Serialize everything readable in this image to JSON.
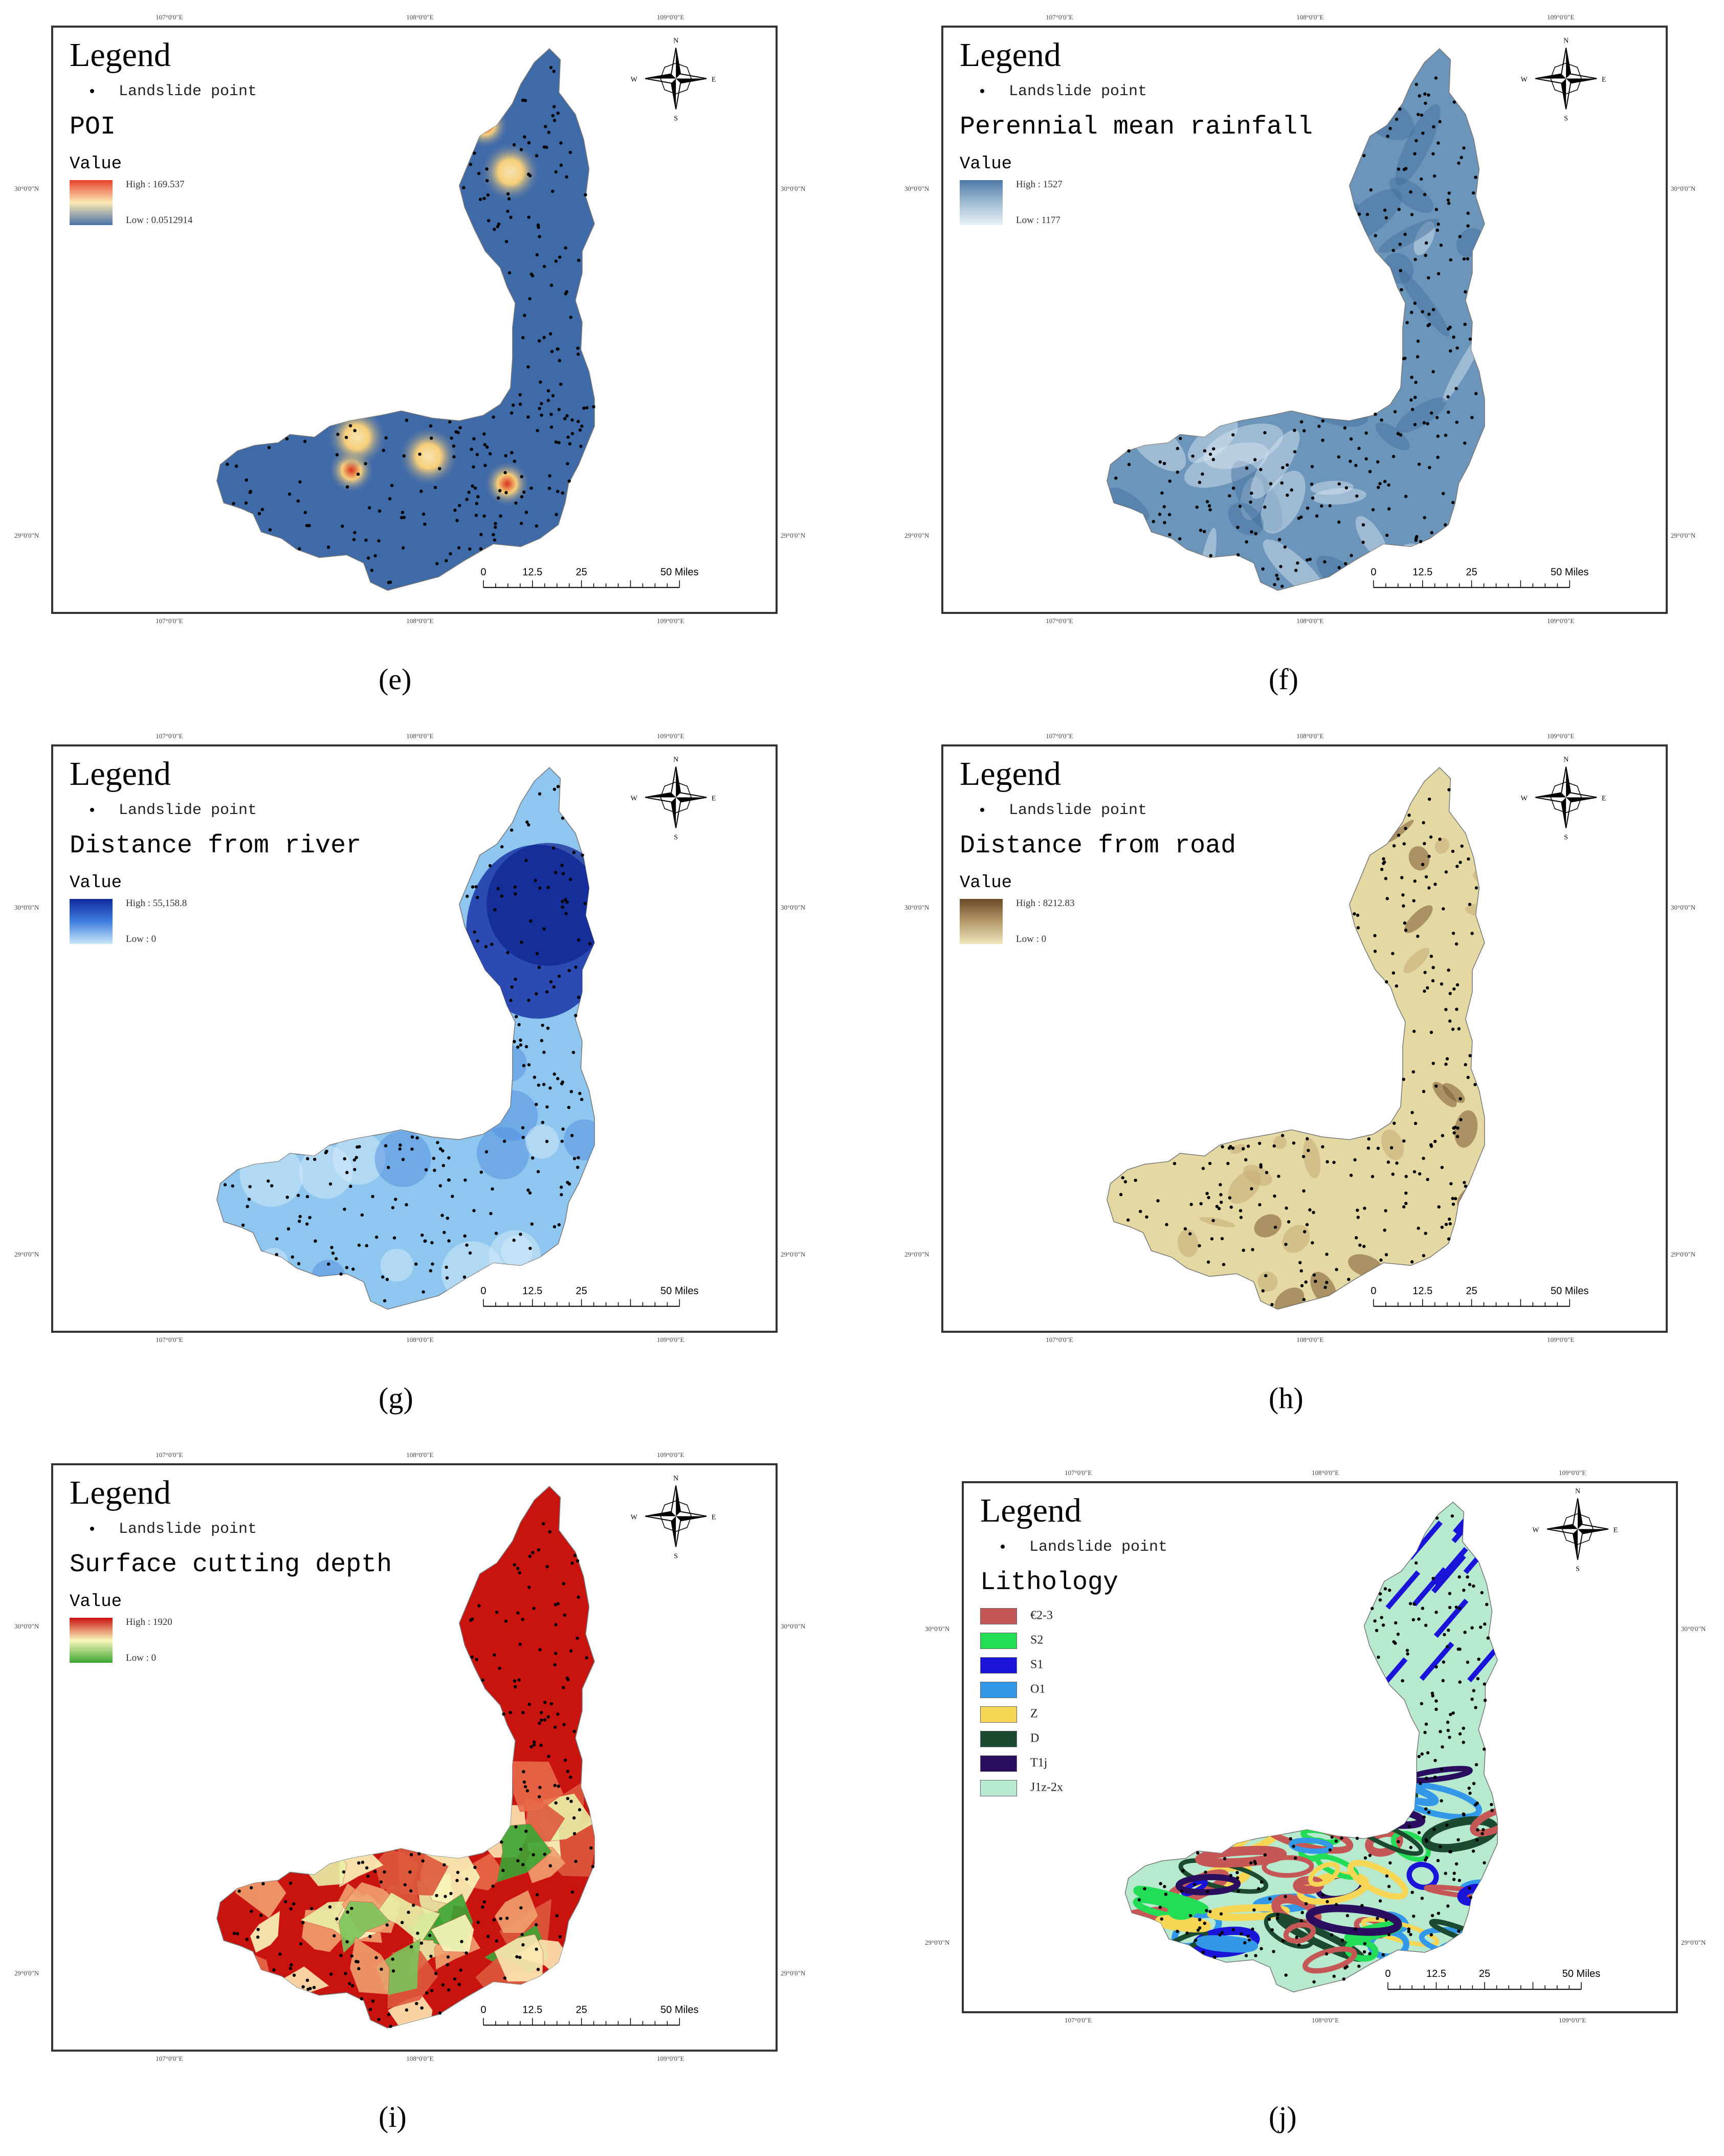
{
  "common": {
    "legend_title": "Legend",
    "point_label": "Landslide point",
    "value_label": "Value",
    "lon_ticks": [
      "107°0'0\"E",
      "108°0'0\"E",
      "109°0'0\"E"
    ],
    "lat_ticks": [
      "30°0'0\"N",
      "29°0'0\"N"
    ],
    "scale": {
      "labels": [
        "0",
        "12.5",
        "25",
        "50 Miles"
      ]
    },
    "compass": {
      "n": "N",
      "s": "S",
      "e": "E",
      "w": "W"
    }
  },
  "panels": [
    {
      "id": "e",
      "caption": "(e)",
      "variable": "POI",
      "high": "High : 169.537",
      "low": "Low : 0.0512914",
      "ramp": [
        "#e8432e",
        "#fbe8b4",
        "#4a72a8"
      ],
      "fill": "#3f6aa8",
      "style": "hotspots"
    },
    {
      "id": "f",
      "caption": "(f)",
      "variable": "Perennial mean rainfall",
      "high": "High : 1527",
      "low": "Low : 1177",
      "ramp": [
        "#4f7aa6",
        "#9fbcd3",
        "#e9f2f7"
      ],
      "fill": "#6c95bb",
      "style": "rainfall"
    },
    {
      "id": "g",
      "caption": "(g)",
      "variable": "Distance from river",
      "high": "High : 55,158.8",
      "low": "Low : 0",
      "ramp": [
        "#10289c",
        "#3f7fe0",
        "#c9e6f8"
      ],
      "fill": "#8fc6ef",
      "style": "river"
    },
    {
      "id": "h",
      "caption": "(h)",
      "variable": "Distance from road",
      "high": "High : 8212.83",
      "low": "Low : 0",
      "ramp": [
        "#6b4a2a",
        "#b59a6a",
        "#efe6bc"
      ],
      "fill": "#e4d8a3",
      "style": "road"
    },
    {
      "id": "i",
      "caption": "(i)",
      "variable": "Surface cutting depth",
      "high": "High : 1920",
      "low": "Low : 0",
      "ramp": [
        "#c9100f",
        "#fbf7bd",
        "#3ca632"
      ],
      "fill": "#c8130f",
      "style": "cutting"
    },
    {
      "id": "j",
      "caption": "(j)",
      "variable": "Lithology",
      "style": "lithology",
      "fill": "#b7e9cf",
      "classes": [
        {
          "label": "€2-3",
          "color": "#c65757"
        },
        {
          "label": "S2",
          "color": "#22dd55"
        },
        {
          "label": "S1",
          "color": "#1a14d8"
        },
        {
          "label": "O1",
          "color": "#3498e8"
        },
        {
          "label": "Z",
          "color": "#f7d555"
        },
        {
          "label": "D",
          "color": "#1b4a30"
        },
        {
          "label": "T1j",
          "color": "#2a0d5e"
        },
        {
          "label": "J1z-2x",
          "color": "#b7e9cf"
        }
      ]
    }
  ]
}
